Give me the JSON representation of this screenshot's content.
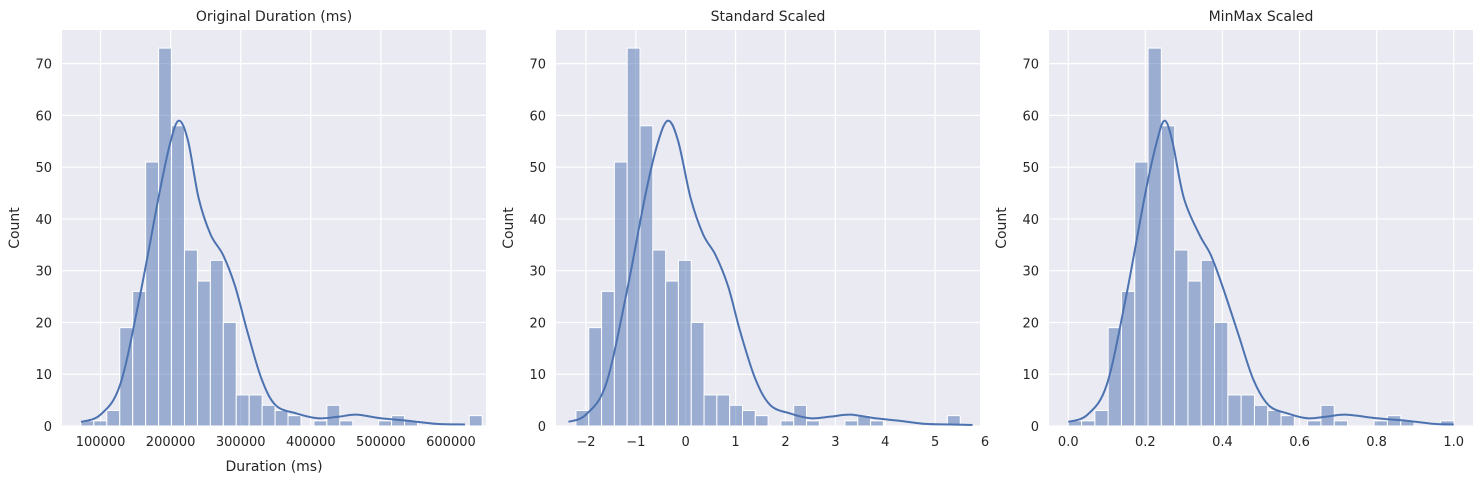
{
  "chart_data": [
    {
      "type": "bar",
      "title": "Original Duration (ms)",
      "xlabel": "Duration (ms)",
      "ylabel": "Count",
      "xlim": [
        45000,
        650000
      ],
      "ylim": [
        0,
        76.5
      ],
      "xticks": [
        100000,
        200000,
        300000,
        400000,
        500000,
        600000
      ],
      "xtick_labels": [
        "100000",
        "200000",
        "300000",
        "400000",
        "500000",
        "600000"
      ],
      "yticks": [
        0,
        10,
        20,
        30,
        40,
        50,
        60,
        70
      ],
      "ytick_labels": [
        "0",
        "10",
        "20",
        "30",
        "40",
        "50",
        "60",
        "70"
      ],
      "bin_start": 72000,
      "bin_width": 18470,
      "values": [
        1,
        1,
        3,
        19,
        26,
        51,
        73,
        58,
        34,
        28,
        32,
        20,
        6,
        6,
        4,
        3,
        2,
        0,
        1,
        4,
        1,
        0,
        0,
        1,
        2,
        1,
        0,
        0,
        0,
        0,
        2
      ],
      "kde_x": [
        72000,
        100000,
        128000,
        156000,
        184000,
        200000,
        212000,
        225000,
        240000,
        257000,
        275000,
        292000,
        310000,
        330000,
        350000,
        380000,
        410000,
        440000,
        465000,
        500000,
        540000,
        580000,
        620000
      ],
      "kde_y": [
        0.8,
        2.2,
        8,
        25,
        45,
        55,
        59,
        55,
        44,
        37,
        33,
        27,
        18,
        9,
        4,
        2.4,
        1.5,
        1.8,
        2.2,
        1.5,
        1.0,
        0.4,
        0.3
      ],
      "grid": true,
      "series_color": "#4c72b0"
    },
    {
      "type": "bar",
      "title": "Standard Scaled",
      "xlabel": "",
      "ylabel": "Count",
      "xlim": [
        -2.6,
        5.9
      ],
      "ylim": [
        0,
        76.5
      ],
      "xticks": [
        -2,
        -1,
        0,
        1,
        2,
        3,
        4,
        5,
        6
      ],
      "xtick_labels": [
        "−2",
        "−1",
        "0",
        "1",
        "2",
        "3",
        "4",
        "5",
        "6"
      ],
      "yticks": [
        0,
        10,
        20,
        30,
        40,
        50,
        60,
        70
      ],
      "ytick_labels": [
        "0",
        "10",
        "20",
        "30",
        "40",
        "50",
        "60",
        "70"
      ],
      "bin_start": -2.2,
      "bin_width": 0.2568,
      "values": [
        3,
        19,
        26,
        51,
        73,
        58,
        34,
        28,
        32,
        20,
        6,
        6,
        4,
        3,
        2,
        0,
        1,
        4,
        1,
        0,
        0,
        1,
        2,
        1,
        0,
        0,
        0,
        0,
        0,
        2
      ],
      "kde_x": [
        -2.35,
        -2.0,
        -1.6,
        -1.2,
        -0.8,
        -0.55,
        -0.35,
        -0.15,
        0.1,
        0.35,
        0.6,
        0.85,
        1.1,
        1.4,
        1.7,
        2.1,
        2.5,
        2.9,
        3.3,
        3.8,
        4.3,
        4.8,
        5.3,
        5.75
      ],
      "kde_y": [
        0.8,
        2.2,
        8,
        25,
        45,
        55,
        59,
        55,
        44,
        37,
        33,
        27,
        18,
        9,
        4,
        2.4,
        1.5,
        1.8,
        2.2,
        1.5,
        1.0,
        0.4,
        0.3,
        0.2
      ],
      "grid": true,
      "series_color": "#4c72b0"
    },
    {
      "type": "bar",
      "title": "MinMax Scaled",
      "xlabel": "",
      "ylabel": "Count",
      "xlim": [
        -0.05,
        1.05
      ],
      "ylim": [
        0,
        76.5
      ],
      "xticks": [
        0.0,
        0.2,
        0.4,
        0.6,
        0.8,
        1.0
      ],
      "xtick_labels": [
        "0.0",
        "0.2",
        "0.4",
        "0.6",
        "0.8",
        "1.0"
      ],
      "yticks": [
        0,
        10,
        20,
        30,
        40,
        50,
        60,
        70
      ],
      "ytick_labels": [
        "0",
        "10",
        "20",
        "30",
        "40",
        "50",
        "60",
        "70"
      ],
      "bin_start": 0.0,
      "bin_width": 0.0345,
      "values": [
        1,
        1,
        3,
        19,
        26,
        51,
        73,
        58,
        34,
        28,
        32,
        20,
        6,
        6,
        4,
        3,
        2,
        0,
        1,
        4,
        1,
        0,
        0,
        1,
        2,
        1,
        0,
        0,
        1
      ],
      "kde_x": [
        0.0,
        0.05,
        0.1,
        0.15,
        0.2,
        0.23,
        0.25,
        0.27,
        0.3,
        0.34,
        0.37,
        0.4,
        0.44,
        0.48,
        0.52,
        0.57,
        0.62,
        0.67,
        0.72,
        0.8,
        0.88,
        0.95,
        1.0
      ],
      "kde_y": [
        0.8,
        2.2,
        8,
        25,
        45,
        55,
        59,
        55,
        44,
        37,
        33,
        27,
        18,
        9,
        4,
        2.4,
        1.5,
        1.8,
        2.2,
        1.5,
        1.0,
        0.4,
        0.3
      ],
      "grid": true,
      "series_color": "#4c72b0"
    }
  ]
}
